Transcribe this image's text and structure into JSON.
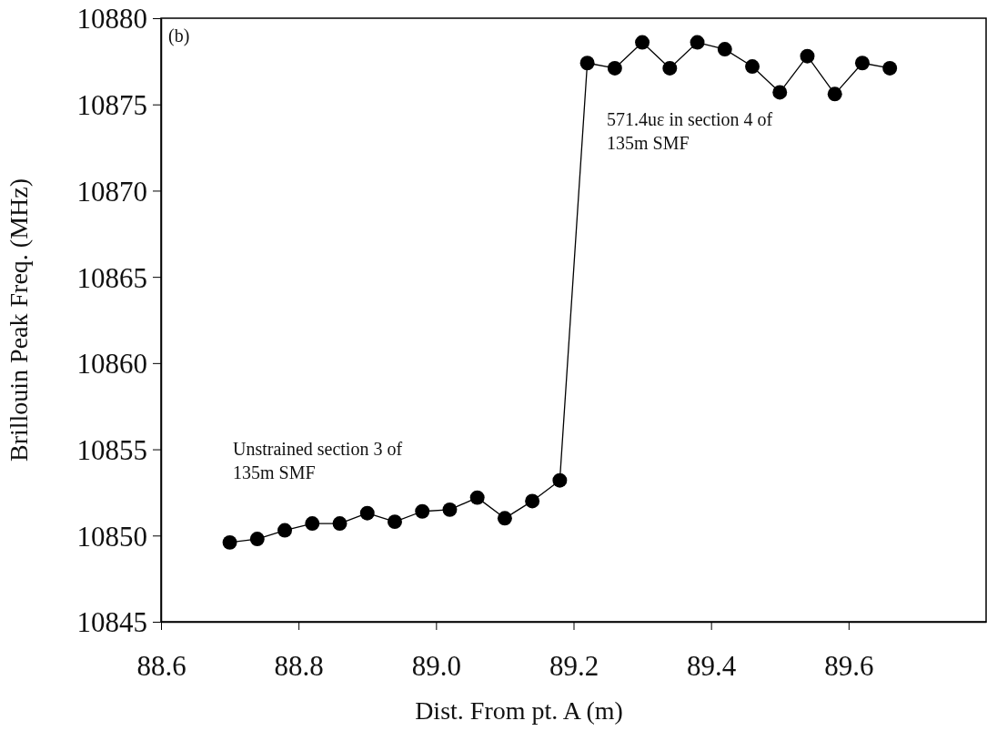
{
  "chart_data": {
    "type": "line",
    "xlabel": "Dist. From pt. A (m)",
    "ylabel": "Brillouin Peak Freq. (MHz)",
    "x": [
      88.7,
      88.74,
      88.78,
      88.82,
      88.86,
      88.9,
      88.94,
      88.98,
      89.02,
      89.06,
      89.1,
      89.14,
      89.18,
      89.22,
      89.26,
      89.3,
      89.34,
      89.38,
      89.42,
      89.46,
      89.5,
      89.54,
      89.58,
      89.62,
      89.66
    ],
    "series": [
      {
        "color": "#000000",
        "values": [
          10849.6,
          10849.8,
          10850.3,
          10850.7,
          10850.7,
          10851.3,
          10850.8,
          10851.4,
          10851.5,
          10852.2,
          10851.0,
          10852.0,
          10853.2,
          10877.4,
          10877.1,
          10878.6,
          10877.1,
          10878.6,
          10878.2,
          10877.2,
          10875.7,
          10877.8,
          10875.6,
          10877.4,
          10877.1
        ]
      }
    ],
    "xlim": [
      88.6,
      89.8
    ],
    "xticks": [
      {
        "value": 88.6,
        "label": "88.6"
      },
      {
        "value": 88.8,
        "label": "88.8"
      },
      {
        "value": 89.0,
        "label": "89.0"
      },
      {
        "value": 89.2,
        "label": "89.2"
      },
      {
        "value": 89.4,
        "label": "89.4"
      },
      {
        "value": 89.6,
        "label": "89.6"
      }
    ],
    "ylim": [
      10845,
      10880
    ],
    "yticks": [
      10845,
      10850,
      10855,
      10860,
      10865,
      10870,
      10875,
      10880
    ],
    "marker": "circle",
    "line_style": "solid",
    "grid": false,
    "annotations": [
      "(b)",
      "Unstrained section 3 of\n135m SMF",
      "571.4uε  in section 4  of\n135m SMF"
    ]
  }
}
